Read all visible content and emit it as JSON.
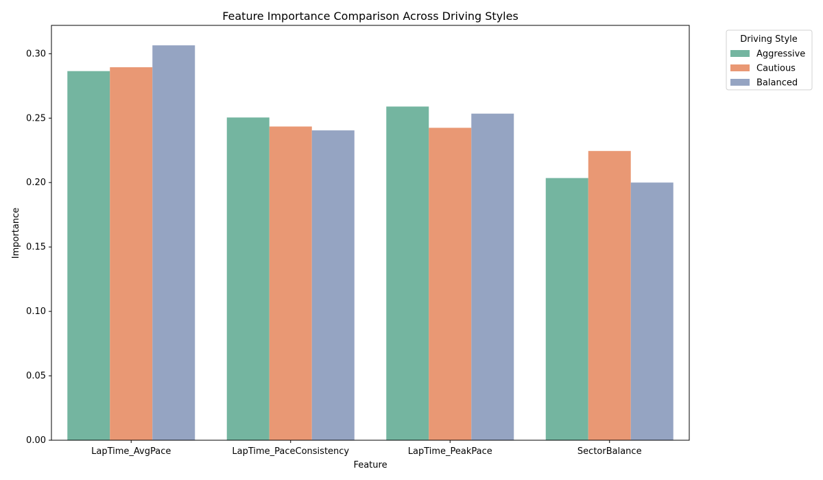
{
  "chart_data": {
    "type": "bar",
    "title": "Feature Importance Comparison Across Driving Styles",
    "xlabel": "Feature",
    "ylabel": "Importance",
    "categories": [
      "LapTime_AvgPace",
      "LapTime_PaceConsistency",
      "LapTime_PeakPace",
      "SectorBalance"
    ],
    "series": [
      {
        "name": "Aggressive",
        "color": "#74b5a0",
        "values": [
          0.2865,
          0.2505,
          0.259,
          0.2035
        ]
      },
      {
        "name": "Cautious",
        "color": "#e99874",
        "values": [
          0.2895,
          0.2435,
          0.2425,
          0.2245
        ]
      },
      {
        "name": "Balanced",
        "color": "#95a4c2",
        "values": [
          0.3065,
          0.2405,
          0.2535,
          0.2
        ]
      }
    ],
    "ylim": [
      0,
      0.322
    ],
    "yticks": [
      "0.00",
      "0.05",
      "0.10",
      "0.15",
      "0.20",
      "0.25",
      "0.30"
    ],
    "legend": {
      "title": "Driving Style",
      "placement": "outside top-right"
    },
    "grid": false
  }
}
